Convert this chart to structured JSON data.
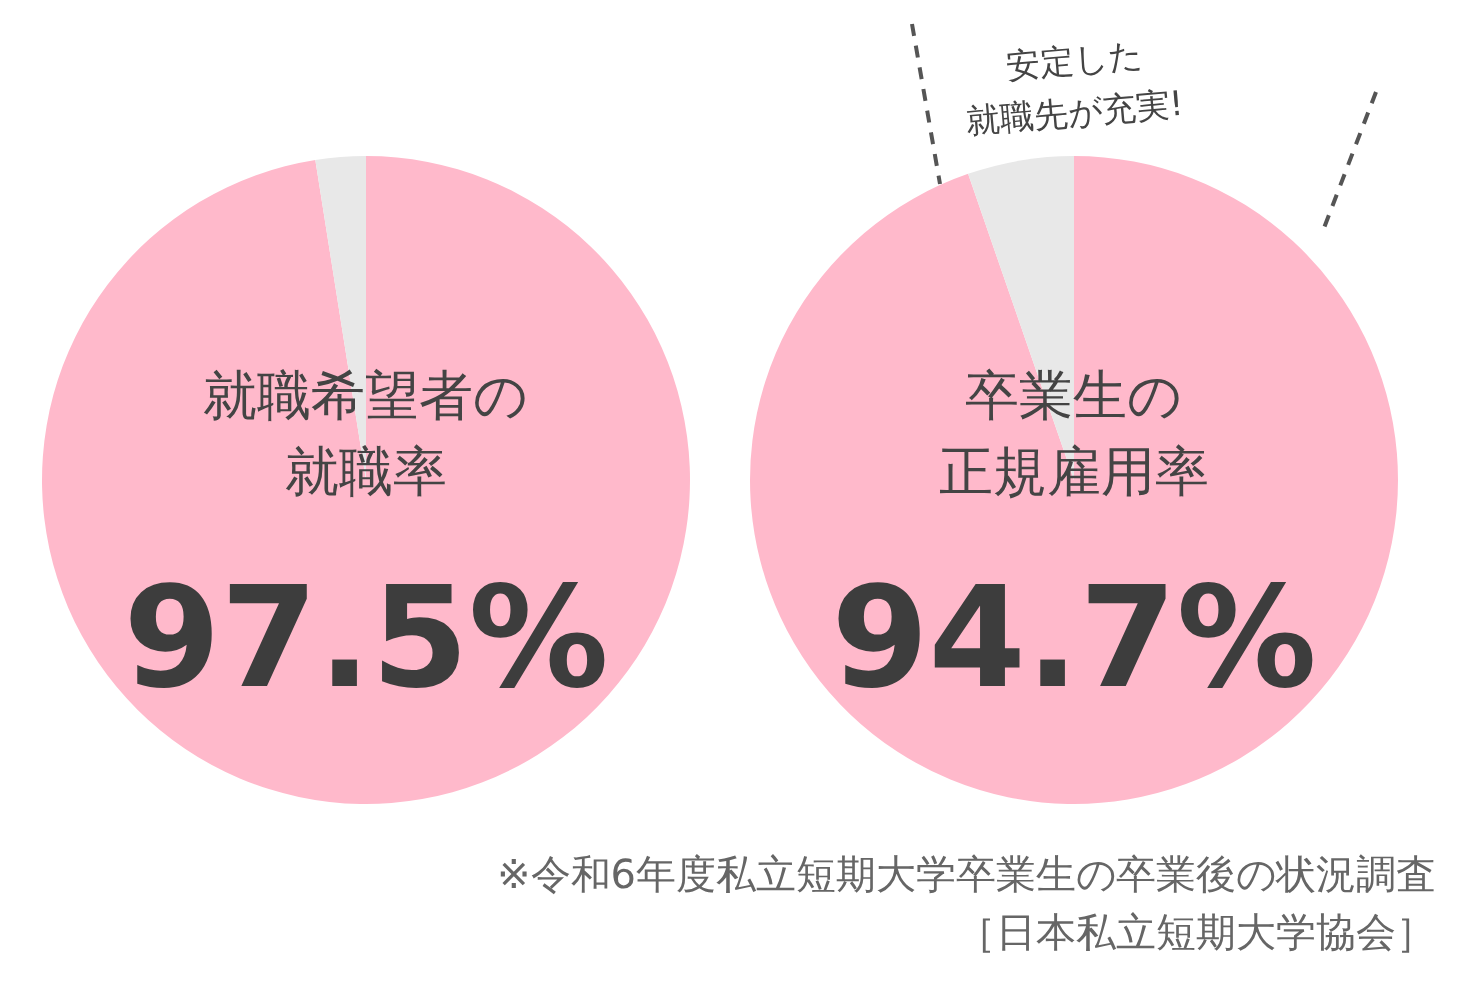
{
  "chart_data": [
    {
      "type": "pie",
      "title": "就職希望者の",
      "subtitle": "就職率",
      "categories": [
        null,
        null
      ],
      "values": [
        97.5,
        2.5
      ],
      "colors": [
        "#ffb9cb",
        "#e8e8e8"
      ],
      "value_labels": [
        "97.5%",
        null
      ],
      "legend": false
    },
    {
      "type": "pie",
      "title": "卒業生の",
      "subtitle": "正規雇用率",
      "categories": [
        null,
        null
      ],
      "values": [
        94.7,
        5.3
      ],
      "colors": [
        "#ffb9cb",
        "#e8e8e8"
      ],
      "value_labels": [
        "94.7%",
        null
      ],
      "legend": false,
      "annotations": [
        "安定した",
        "就職先が充実!",
        "※令和6年度私立短期大学卒業生の卒業後の状況調査",
        "［日本私立短期大学協会］"
      ]
    }
  ]
}
